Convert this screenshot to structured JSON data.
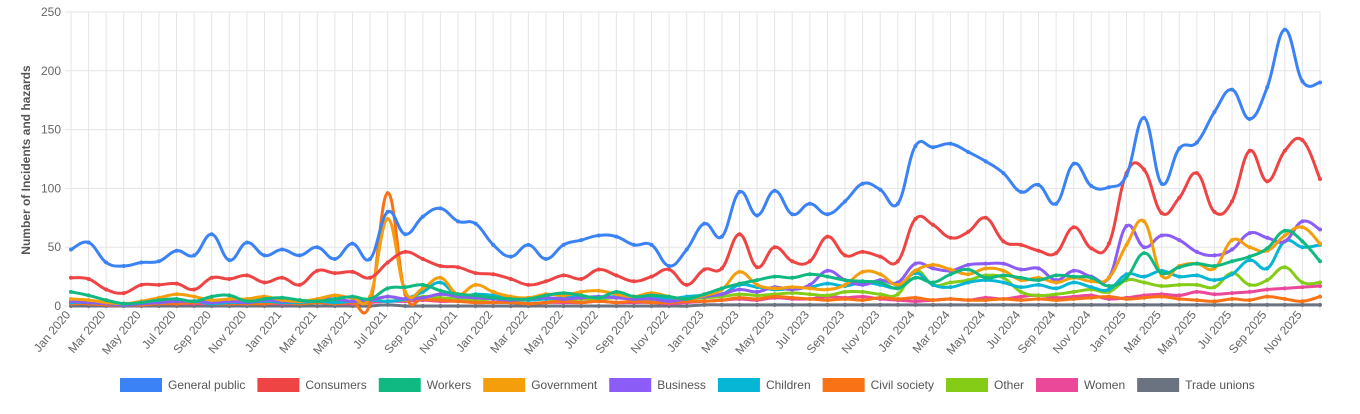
{
  "chart_data": {
    "type": "line",
    "ylabel": "Number of Incidents and hazards",
    "ylim": [
      0,
      250
    ],
    "yticks": [
      0,
      50,
      100,
      150,
      200,
      250
    ],
    "grid": true,
    "legend_position": "bottom",
    "x": [
      "Jan 2020",
      "Feb 2020",
      "Mar 2020",
      "Apr 2020",
      "May 2020",
      "Jun 2020",
      "Jul 2020",
      "Aug 2020",
      "Sep 2020",
      "Oct 2020",
      "Nov 2020",
      "Dec 2020",
      "Jan 2021",
      "Feb 2021",
      "Mar 2021",
      "Apr 2021",
      "May 2021",
      "Jun 2021",
      "Jul 2021",
      "Aug 2021",
      "Sep 2021",
      "Oct 2021",
      "Nov 2021",
      "Dec 2021",
      "Jan 2022",
      "Feb 2022",
      "Mar 2022",
      "Apr 2022",
      "May 2022",
      "Jun 2022",
      "Jul 2022",
      "Aug 2022",
      "Sep 2022",
      "Oct 2022",
      "Nov 2022",
      "Dec 2022",
      "Jan 2023",
      "Feb 2023",
      "Mar 2023",
      "Apr 2023",
      "May 2023",
      "Jun 2023",
      "Jul 2023",
      "Aug 2023",
      "Sep 2023",
      "Oct 2023",
      "Nov 2023",
      "Dec 2023",
      "Jan 2024",
      "Feb 2024",
      "Mar 2024",
      "Apr 2024",
      "May 2024",
      "Jun 2024",
      "Jul 2024",
      "Aug 2024",
      "Sep 2024",
      "Oct 2024",
      "Nov 2024",
      "Dec 2024",
      "Jan 2025",
      "Feb 2025",
      "Mar 2025",
      "Apr 2025",
      "May 2025",
      "Jun 2025",
      "Jul 2025",
      "Aug 2025",
      "Sep 2025",
      "Oct 2025",
      "Nov 2025",
      "Dec 2025"
    ],
    "x_tick_labels": [
      "Jan 2020",
      "Mar 2020",
      "May 2020",
      "Jul 2020",
      "Sep 2020",
      "Nov 2020",
      "Jan 2021",
      "Mar 2021",
      "May 2021",
      "Jul 2021",
      "Sep 2021",
      "Nov 2021",
      "Jan 2022",
      "Mar 2022",
      "May 2022",
      "Jul 2022",
      "Sep 2022",
      "Nov 2022",
      "Jan 2023",
      "Mar 2023",
      "May 2023",
      "Jul 2023",
      "Sep 2023",
      "Nov 2023",
      "Jan 2024",
      "Mar 2024",
      "May 2024",
      "Jul 2024",
      "Sep 2024",
      "Nov 2024",
      "Jan 2025",
      "Mar 2025",
      "May 2025",
      "Jul 2025",
      "Sep 2025",
      "Nov 2025"
    ],
    "series": [
      {
        "name": "General public",
        "color": "#3b82f6",
        "values": [
          48,
          54,
          37,
          34,
          37,
          38,
          47,
          43,
          61,
          39,
          54,
          43,
          48,
          43,
          50,
          40,
          53,
          40,
          80,
          61,
          76,
          83,
          72,
          70,
          52,
          42,
          52,
          40,
          52,
          56,
          60,
          59,
          52,
          52,
          34,
          48,
          70,
          59,
          97,
          77,
          98,
          78,
          87,
          78,
          89,
          104,
          99,
          87,
          136,
          135,
          138,
          131,
          123,
          113,
          97,
          103,
          87,
          121,
          102,
          101,
          111,
          160,
          104,
          134,
          139,
          165,
          184,
          159,
          186,
          235,
          191,
          190
        ]
      },
      {
        "name": "Consumers",
        "color": "#ef4444",
        "values": [
          24,
          23,
          14,
          11,
          18,
          18,
          19,
          14,
          24,
          23,
          26,
          20,
          24,
          18,
          30,
          28,
          29,
          24,
          37,
          46,
          40,
          34,
          33,
          28,
          27,
          23,
          18,
          21,
          26,
          23,
          31,
          26,
          21,
          25,
          31,
          18,
          31,
          32,
          61,
          33,
          50,
          38,
          38,
          59,
          43,
          46,
          42,
          38,
          74,
          69,
          58,
          63,
          75,
          55,
          52,
          47,
          45,
          67,
          49,
          53,
          113,
          116,
          79,
          92,
          113,
          80,
          89,
          132,
          106,
          132,
          141,
          108
        ]
      },
      {
        "name": "Workers",
        "color": "#10b981",
        "values": [
          12,
          9,
          5,
          2,
          3,
          5,
          6,
          4,
          8,
          9,
          4,
          6,
          7,
          5,
          4,
          6,
          8,
          6,
          15,
          16,
          18,
          13,
          10,
          9,
          7,
          6,
          6,
          9,
          11,
          9,
          7,
          12,
          8,
          9,
          8,
          6,
          10,
          15,
          19,
          22,
          25,
          24,
          27,
          25,
          22,
          21,
          20,
          15,
          24,
          20,
          27,
          31,
          24,
          26,
          24,
          22,
          26,
          25,
          24,
          17,
          24,
          45,
          28,
          33,
          36,
          34,
          38,
          42,
          49,
          64,
          55,
          38
        ]
      },
      {
        "name": "Government",
        "color": "#f59e0b",
        "values": [
          6,
          5,
          3,
          2,
          4,
          7,
          10,
          8,
          5,
          6,
          6,
          8,
          5,
          4,
          6,
          9,
          7,
          8,
          74,
          12,
          15,
          24,
          10,
          18,
          12,
          8,
          7,
          10,
          9,
          12,
          13,
          10,
          8,
          11,
          8,
          6,
          9,
          14,
          29,
          18,
          15,
          16,
          15,
          14,
          18,
          29,
          27,
          18,
          30,
          35,
          31,
          27,
          32,
          30,
          22,
          24,
          20,
          24,
          21,
          24,
          52,
          72,
          26,
          34,
          36,
          32,
          56,
          50,
          47,
          60,
          67,
          53
        ]
      },
      {
        "name": "Business",
        "color": "#8b5cf6",
        "values": [
          4,
          3,
          2,
          1,
          2,
          3,
          4,
          4,
          3,
          4,
          3,
          5,
          4,
          4,
          5,
          6,
          4,
          5,
          8,
          6,
          7,
          10,
          8,
          7,
          6,
          5,
          6,
          7,
          6,
          7,
          8,
          7,
          6,
          6,
          4,
          6,
          8,
          10,
          14,
          12,
          16,
          14,
          18,
          30,
          22,
          18,
          22,
          20,
          36,
          32,
          30,
          35,
          36,
          36,
          31,
          32,
          22,
          30,
          25,
          24,
          68,
          50,
          60,
          56,
          46,
          43,
          48,
          62,
          58,
          55,
          72,
          65
        ]
      },
      {
        "name": "Children",
        "color": "#06b6d4",
        "values": [
          3,
          3,
          2,
          1,
          2,
          3,
          4,
          4,
          2,
          3,
          3,
          4,
          3,
          3,
          4,
          3,
          4,
          5,
          4,
          6,
          12,
          20,
          8,
          10,
          9,
          6,
          5,
          6,
          7,
          8,
          7,
          8,
          6,
          7,
          6,
          8,
          9,
          10,
          18,
          16,
          14,
          15,
          16,
          19,
          17,
          20,
          18,
          16,
          28,
          18,
          16,
          20,
          22,
          20,
          16,
          18,
          15,
          20,
          16,
          14,
          27,
          25,
          30,
          25,
          26,
          22,
          27,
          39,
          32,
          55,
          50,
          52
        ]
      },
      {
        "name": "Civil society",
        "color": "#f97316",
        "values": [
          2,
          2,
          1,
          1,
          1,
          2,
          2,
          3,
          2,
          2,
          2,
          2,
          3,
          2,
          3,
          2,
          3,
          2,
          96,
          10,
          6,
          5,
          4,
          3,
          3,
          3,
          2,
          3,
          4,
          3,
          4,
          3,
          4,
          3,
          3,
          4,
          4,
          5,
          7,
          6,
          8,
          7,
          6,
          5,
          6,
          5,
          7,
          6,
          7,
          5,
          6,
          5,
          5,
          6,
          5,
          6,
          5,
          6,
          7,
          8,
          6,
          7,
          8,
          6,
          5,
          4,
          6,
          5,
          8,
          6,
          4,
          8
        ]
      },
      {
        "name": "Other",
        "color": "#84cc16",
        "values": [
          3,
          2,
          2,
          1,
          2,
          3,
          3,
          4,
          3,
          3,
          3,
          3,
          3,
          2,
          3,
          4,
          3,
          4,
          8,
          5,
          8,
          7,
          6,
          5,
          6,
          5,
          5,
          6,
          5,
          6,
          6,
          7,
          6,
          5,
          5,
          6,
          7,
          8,
          10,
          9,
          10,
          11,
          10,
          9,
          12,
          12,
          10,
          10,
          30,
          18,
          20,
          22,
          26,
          24,
          12,
          9,
          10,
          12,
          14,
          12,
          22,
          20,
          17,
          18,
          18,
          16,
          28,
          18,
          22,
          33,
          20,
          20
        ]
      },
      {
        "name": "Women",
        "color": "#ec4899",
        "values": [
          2,
          2,
          1,
          1,
          1,
          2,
          2,
          2,
          2,
          2,
          2,
          2,
          2,
          2,
          3,
          2,
          2,
          3,
          4,
          4,
          5,
          4,
          4,
          3,
          3,
          3,
          2,
          3,
          3,
          3,
          4,
          3,
          3,
          3,
          2,
          3,
          4,
          5,
          6,
          5,
          7,
          6,
          6,
          8,
          7,
          8,
          6,
          5,
          4,
          5,
          6,
          5,
          7,
          6,
          8,
          9,
          7,
          8,
          9,
          6,
          7,
          9,
          10,
          9,
          12,
          10,
          11,
          12,
          14,
          15,
          16,
          17
        ]
      },
      {
        "name": "Trade unions",
        "color": "#6b7280",
        "values": [
          0,
          0,
          0,
          0,
          0,
          0,
          0,
          0,
          0,
          0,
          0,
          0,
          0,
          0,
          0,
          0,
          0,
          0,
          1,
          0,
          0,
          0,
          0,
          0,
          0,
          0,
          0,
          0,
          0,
          0,
          0,
          0,
          0,
          0,
          0,
          0,
          1,
          1,
          1,
          1,
          1,
          1,
          1,
          1,
          1,
          1,
          1,
          1,
          1,
          1,
          1,
          1,
          1,
          1,
          1,
          1,
          1,
          1,
          1,
          1,
          1,
          1,
          1,
          1,
          1,
          1,
          1,
          1,
          1,
          1,
          1,
          1
        ]
      }
    ]
  }
}
